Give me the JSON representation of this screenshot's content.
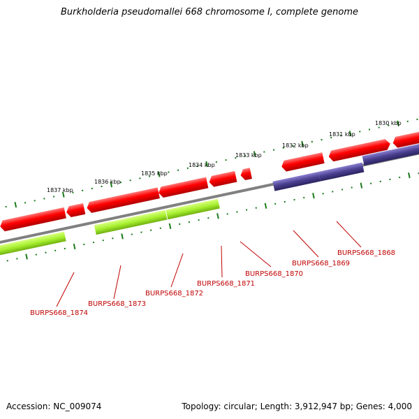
{
  "title": "Burkholderia pseudomallei 668 chromosome I, complete genome",
  "footer": {
    "accession": "Accession: NC_009074",
    "summary": "Topology: circular; Length: 3,912,947 bp; Genes: 4,000"
  },
  "colors": {
    "backbone": "#808080",
    "forward_gene": "#ff0000",
    "reverse_green": "#99e020",
    "reverse_blue": "#4a3f8f",
    "tick": "#1a7a1a",
    "label": "#c00000"
  },
  "scale_labels": [
    "1830 kbp",
    "1831 kbp",
    "1832 kbp",
    "1833 kbp",
    "1834 kbp",
    "1835 kbp",
    "1836 kbp",
    "1837 kbp"
  ],
  "gene_labels": [
    "BURPS668_1868",
    "BURPS668_1869",
    "BURPS668_1870",
    "BURPS668_1871",
    "BURPS668_1872",
    "BURPS668_1873",
    "BURPS668_1874"
  ]
}
